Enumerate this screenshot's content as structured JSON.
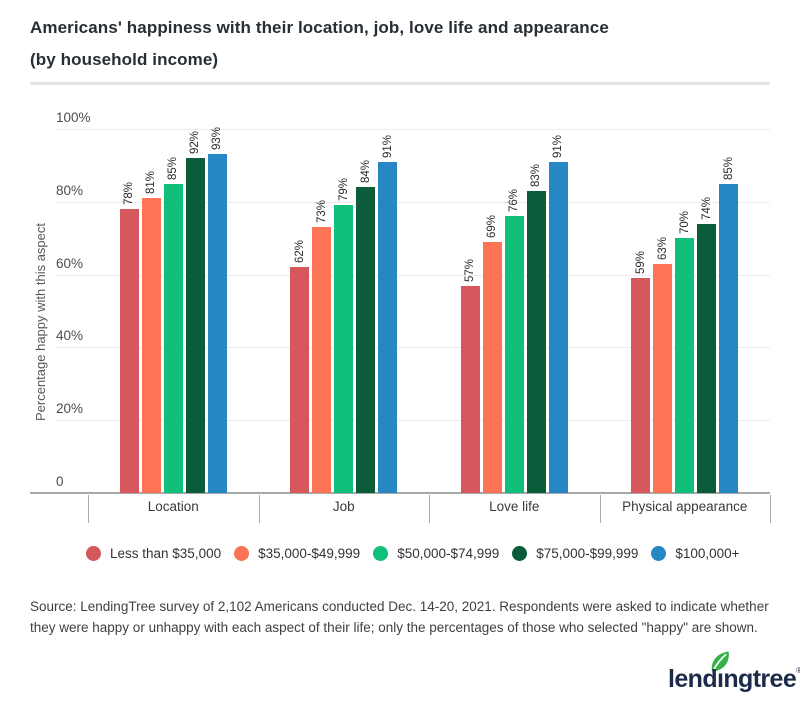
{
  "header": {
    "title_line1": "Americans' happiness with their location, job, love life and appearance",
    "title_line2": "(by household income)"
  },
  "chart_data": {
    "type": "bar",
    "title": "Americans' happiness with their location, job, love life and appearance (by household income)",
    "xlabel": "",
    "ylabel": "Percentage happy with this aspect",
    "ylim": [
      0,
      100
    ],
    "grid": true,
    "legend_position": "bottom",
    "value_label_suffix": "%",
    "yticks": [
      {
        "value": 0,
        "label": "0"
      },
      {
        "value": 20,
        "label": "20%"
      },
      {
        "value": 40,
        "label": "40%"
      },
      {
        "value": 60,
        "label": "60%"
      },
      {
        "value": 80,
        "label": "80%"
      },
      {
        "value": 100,
        "label": "100%"
      }
    ],
    "categories": [
      "Location",
      "Job",
      "Love life",
      "Physical appearance"
    ],
    "series": [
      {
        "name": "Less than $35,000",
        "color": "#d6575c",
        "values": [
          78,
          62,
          57,
          59
        ]
      },
      {
        "name": "$35,000-$49,999",
        "color": "#fc7355",
        "values": [
          81,
          73,
          69,
          63
        ]
      },
      {
        "name": "$50,000-$74,999",
        "color": "#10bf7a",
        "values": [
          85,
          79,
          76,
          70
        ]
      },
      {
        "name": "$75,000-$99,999",
        "color": "#0a5c3a",
        "values": [
          92,
          84,
          83,
          74
        ]
      },
      {
        "name": "$100,000+",
        "color": "#2786c4",
        "values": [
          93,
          91,
          91,
          85
        ]
      }
    ]
  },
  "source": {
    "text": "Source: LendingTree survey of 2,102 Americans conducted Dec. 14-20, 2021. Respondents were asked to indicate whether they were happy or unhappy with each aspect of their life; only the percentages of those who selected \"happy\" are shown."
  },
  "logo": {
    "name": "lendingtree",
    "part1": "lend",
    "part2": "ı",
    "part3": "ngtree",
    "registered": "®",
    "text_color": "#1c2b49",
    "leaf_color": "#33b247"
  }
}
